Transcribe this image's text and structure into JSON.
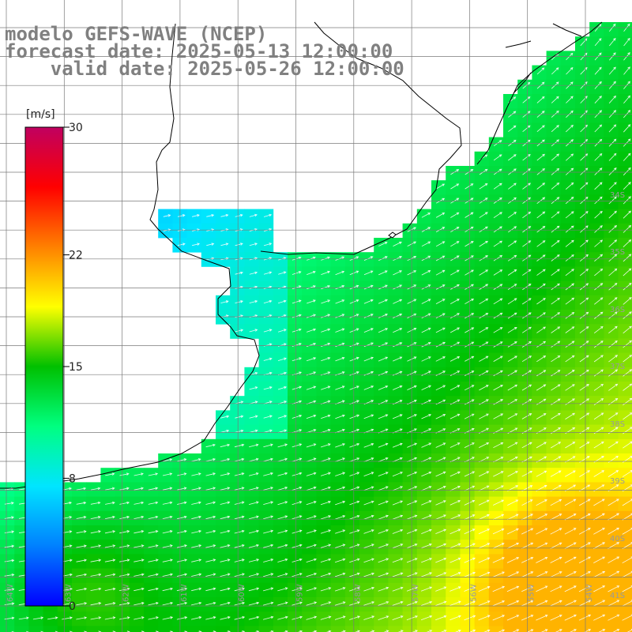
{
  "title": {
    "model": "modelo GEFS-WAVE (NCEP)",
    "forecast": "forecast date: 2025-05-13 12:00:00",
    "valid": "valid date: 2025-05-26 12:00:00"
  },
  "colorbar": {
    "unit": "[m/s]",
    "min": 0,
    "max": 30,
    "ticks": [
      {
        "value": 30,
        "label": "30"
      },
      {
        "value": 22,
        "label": "22"
      },
      {
        "value": 15,
        "label": "15"
      },
      {
        "value": 8,
        "label": "8"
      },
      {
        "value": 0,
        "label": "0"
      }
    ],
    "colors": [
      "#0000ff",
      "#0080ff",
      "#00e5ff",
      "#00ff80",
      "#00c000",
      "#ffff00",
      "#ff8000",
      "#ff0000",
      "#c00060"
    ]
  },
  "lat_labels": [
    "34S",
    "35S",
    "36S",
    "37S",
    "38S",
    "39S",
    "40S",
    "41S"
  ],
  "lon_labels": [
    "64W",
    "63W",
    "62W",
    "61W",
    "60W",
    "59W",
    "58W",
    "57W",
    "56W",
    "55W",
    "54W"
  ],
  "colors": {
    "land": "#ffffff",
    "coast": "#000000",
    "grid": "#7a7a7a",
    "arrow": "#ffffff",
    "title_text": "#808080"
  }
}
